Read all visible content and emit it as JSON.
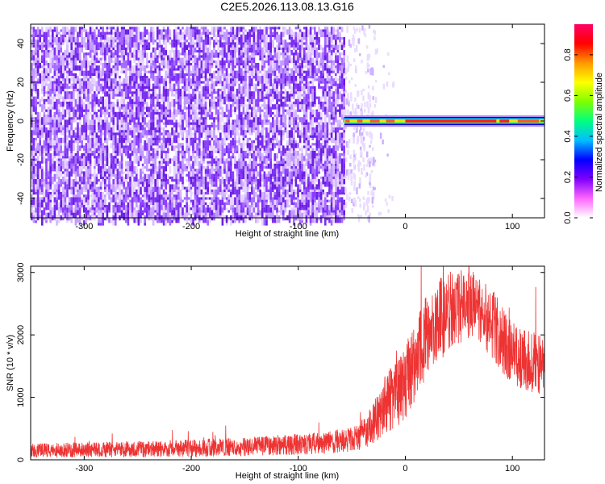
{
  "title": "C2E5.2026.113.08.13.G16",
  "chart_data": [
    {
      "type": "heatmap",
      "xlabel": "Height of straight line (km)",
      "ylabel": "Frequency (Hz)",
      "xlim": [
        -350,
        130
      ],
      "ylim": [
        -50,
        50
      ],
      "xticks": [
        -300,
        -200,
        -100,
        0,
        100
      ],
      "yticks": [
        -40,
        -20,
        0,
        20,
        40
      ],
      "noise_region_x": [
        -350,
        -57
      ],
      "sparse_noise_region_x": [
        -57,
        -10
      ],
      "signal_trace": {
        "x_start": -57,
        "x_end": 130,
        "frequency_hz": 0,
        "peak_amplitude_segments": [
          {
            "x": [
              -56,
              -52
            ],
            "amplitude": 0.85
          },
          {
            "x": [
              -45,
              -40
            ],
            "amplitude": 0.8
          },
          {
            "x": [
              -33,
              -24
            ],
            "amplitude": 0.8
          },
          {
            "x": [
              -18,
              -10
            ],
            "amplitude": 0.85
          },
          {
            "x": [
              0,
              85
            ],
            "amplitude": 0.95
          },
          {
            "x": [
              88,
              97
            ],
            "amplitude": 0.9
          },
          {
            "x": [
              105,
              125
            ],
            "amplitude": 0.85
          }
        ]
      },
      "colorbar": {
        "label": "Normalized spectral amplitude",
        "range": [
          0,
          0.95
        ],
        "ticks": [
          "0.0",
          "0.2",
          "0.4",
          "0.6",
          "0.8"
        ],
        "colors": [
          "#ffffff",
          "#ff66ff",
          "#7f00ff",
          "#0000ff",
          "#00bfff",
          "#00ff7f",
          "#7fff00",
          "#ffff00",
          "#ff9900",
          "#ff0000",
          "#ff0066"
        ]
      }
    },
    {
      "type": "line",
      "xlabel": "Height of straight line (km)",
      "ylabel": "SNR (10 * v/v)",
      "xlim": [
        -350,
        130
      ],
      "ylim": [
        0,
        3100
      ],
      "xticks": [
        -300,
        -200,
        -100,
        0,
        100
      ],
      "yticks": [
        0,
        1000,
        2000,
        3000
      ],
      "color": "#ee3333",
      "series": [
        {
          "envelope_x": [
            -350,
            -300,
            -250,
            -200,
            -150,
            -100,
            -70,
            -50,
            -40,
            -30,
            -20,
            -10,
            0,
            10,
            20,
            30,
            40,
            50,
            60,
            70,
            80,
            90,
            100,
            110,
            120,
            130
          ],
          "mean": [
            150,
            160,
            170,
            185,
            210,
            250,
            280,
            330,
            400,
            600,
            850,
            1050,
            1250,
            1600,
            1950,
            2200,
            2380,
            2450,
            2500,
            2400,
            2200,
            1950,
            1700,
            1600,
            1550,
            1500
          ],
          "spread": [
            120,
            120,
            130,
            140,
            150,
            170,
            180,
            200,
            250,
            350,
            450,
            550,
            600,
            650,
            700,
            700,
            650,
            600,
            550,
            550,
            550,
            550,
            500,
            500,
            500,
            500
          ]
        }
      ]
    }
  ]
}
